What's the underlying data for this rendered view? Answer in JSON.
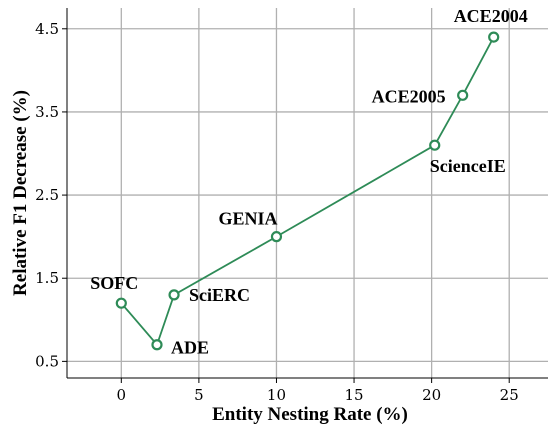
{
  "chart_data": {
    "type": "line",
    "xlabel": "Entity Nesting Rate (%)",
    "ylabel": "Relative F1 Decrease (%)",
    "xlim": [
      -3.5,
      27.5
    ],
    "ylim": [
      0.3,
      4.75
    ],
    "xticks": [
      0,
      5,
      10,
      15,
      20,
      25
    ],
    "yticks": [
      0.5,
      1.5,
      2.5,
      3.5,
      4.5
    ],
    "xtick_labels": [
      "0",
      "5",
      "10",
      "15",
      "20",
      "25"
    ],
    "ytick_labels": [
      "0.5",
      "1.5",
      "2.5",
      "3.5",
      "4.5"
    ],
    "grid": true,
    "line_color": "#2e8b57",
    "series": [
      {
        "points": [
          {
            "label": "SOFC",
            "x": 0,
            "y": 1.2
          },
          {
            "label": "ADE",
            "x": 2.3,
            "y": 0.7
          },
          {
            "label": "SciERC",
            "x": 3.4,
            "y": 1.3
          },
          {
            "label": "GENIA",
            "x": 10.0,
            "y": 2.0
          },
          {
            "label": "ScienceIE",
            "x": 20.2,
            "y": 3.1
          },
          {
            "label": "ACE2005",
            "x": 22.0,
            "y": 3.7
          },
          {
            "label": "ACE2004",
            "x": 24.0,
            "y": 4.4
          }
        ]
      }
    ]
  }
}
